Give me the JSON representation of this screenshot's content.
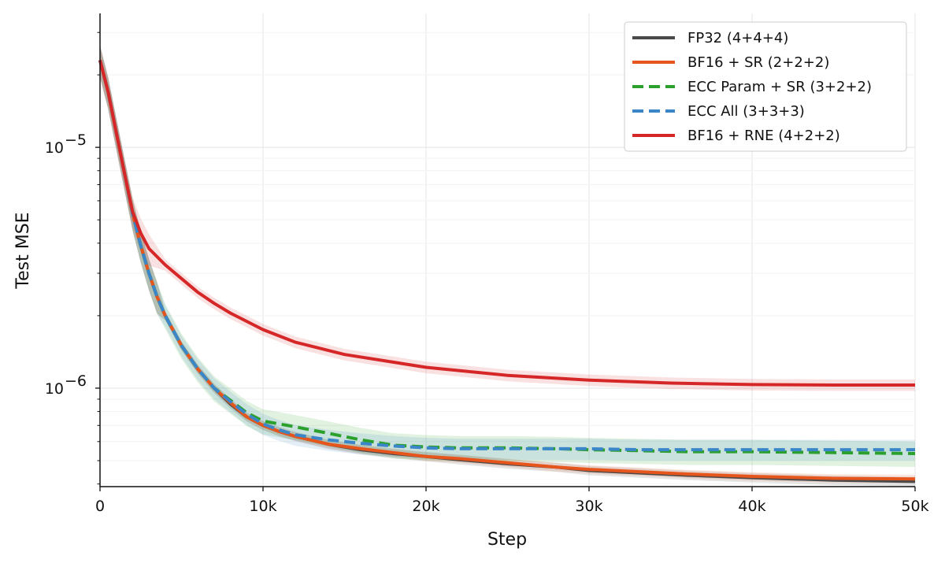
{
  "chart_data": {
    "type": "line",
    "title": "",
    "xlabel": "Step",
    "ylabel": "Test MSE",
    "xlim": [
      0,
      50000
    ],
    "ylim": [
      3.9e-07,
      3.6e-05
    ],
    "yscale": "log",
    "grid": true,
    "legend_position": "top-right",
    "x_ticks": [
      0,
      10000,
      20000,
      30000,
      40000,
      50000
    ],
    "x_tick_labels": [
      "0",
      "10k",
      "20k",
      "30k",
      "40k",
      "50k"
    ],
    "y_major_ticks": [
      1e-06,
      1e-05
    ],
    "y_tick_labels": [
      {
        "base": "10",
        "exp": "−6"
      },
      {
        "base": "10",
        "exp": "−5"
      }
    ],
    "series": [
      {
        "name": "FP32 (4+4+4)",
        "color": "#4a4a4a",
        "dash": "solid",
        "points": [
          [
            0,
            2.3e-05
          ],
          [
            500,
            1.7e-05
          ],
          [
            1000,
            1.15e-05
          ],
          [
            1500,
            7.8e-06
          ],
          [
            2000,
            5.3e-06
          ],
          [
            2500,
            3.9e-06
          ],
          [
            3000,
            3e-06
          ],
          [
            3500,
            2.4e-06
          ],
          [
            4000,
            2e-06
          ],
          [
            5000,
            1.5e-06
          ],
          [
            6000,
            1.2e-06
          ],
          [
            7000,
            1e-06
          ],
          [
            8000,
            8.6e-07
          ],
          [
            9000,
            7.6e-07
          ],
          [
            10000,
            7e-07
          ],
          [
            11000,
            6.6e-07
          ],
          [
            12000,
            6.3e-07
          ],
          [
            14000,
            5.85e-07
          ],
          [
            16000,
            5.55e-07
          ],
          [
            18000,
            5.35e-07
          ],
          [
            20000,
            5.2e-07
          ],
          [
            22000,
            5.05e-07
          ],
          [
            25000,
            4.85e-07
          ],
          [
            28000,
            4.7e-07
          ],
          [
            30000,
            4.55e-07
          ],
          [
            33000,
            4.45e-07
          ],
          [
            36000,
            4.35e-07
          ],
          [
            40000,
            4.25e-07
          ],
          [
            45000,
            4.15e-07
          ],
          [
            50000,
            4.1e-07
          ]
        ]
      },
      {
        "name": "BF16 + SR (2+2+2)",
        "color": "#e6561c",
        "dash": "solid",
        "points": [
          [
            0,
            2.3e-05
          ],
          [
            500,
            1.7e-05
          ],
          [
            1000,
            1.15e-05
          ],
          [
            1500,
            7.8e-06
          ],
          [
            2000,
            5.3e-06
          ],
          [
            2500,
            3.9e-06
          ],
          [
            3000,
            3e-06
          ],
          [
            3500,
            2.4e-06
          ],
          [
            4000,
            2e-06
          ],
          [
            5000,
            1.5e-06
          ],
          [
            6000,
            1.2e-06
          ],
          [
            7000,
            1e-06
          ],
          [
            8000,
            8.7e-07
          ],
          [
            9000,
            7.6e-07
          ],
          [
            10000,
            7e-07
          ],
          [
            11000,
            6.6e-07
          ],
          [
            12000,
            6.3e-07
          ],
          [
            14000,
            5.85e-07
          ],
          [
            16000,
            5.6e-07
          ],
          [
            18000,
            5.4e-07
          ],
          [
            20000,
            5.2e-07
          ],
          [
            22000,
            5.1e-07
          ],
          [
            25000,
            4.9e-07
          ],
          [
            28000,
            4.7e-07
          ],
          [
            30000,
            4.6e-07
          ],
          [
            33000,
            4.5e-07
          ],
          [
            36000,
            4.4e-07
          ],
          [
            40000,
            4.3e-07
          ],
          [
            45000,
            4.22e-07
          ],
          [
            50000,
            4.2e-07
          ]
        ]
      },
      {
        "name": "ECC Param + SR (3+2+2)",
        "color": "#2ca02c",
        "dash": "dashed",
        "points": [
          [
            0,
            2.3e-05
          ],
          [
            500,
            1.7e-05
          ],
          [
            1000,
            1.15e-05
          ],
          [
            1500,
            7.8e-06
          ],
          [
            2000,
            5.3e-06
          ],
          [
            2500,
            3.9e-06
          ],
          [
            3000,
            3e-06
          ],
          [
            3500,
            2.4e-06
          ],
          [
            4000,
            2e-06
          ],
          [
            5000,
            1.5e-06
          ],
          [
            6000,
            1.2e-06
          ],
          [
            7000,
            1e-06
          ],
          [
            8000,
            8.9e-07
          ],
          [
            9000,
            7.9e-07
          ],
          [
            10000,
            7.3e-07
          ],
          [
            11000,
            7.1e-07
          ],
          [
            12000,
            6.9e-07
          ],
          [
            14000,
            6.5e-07
          ],
          [
            16000,
            6.1e-07
          ],
          [
            18000,
            5.8e-07
          ],
          [
            20000,
            5.7e-07
          ],
          [
            22000,
            5.65e-07
          ],
          [
            25000,
            5.65e-07
          ],
          [
            28000,
            5.6e-07
          ],
          [
            30000,
            5.55e-07
          ],
          [
            33000,
            5.5e-07
          ],
          [
            36000,
            5.45e-07
          ],
          [
            40000,
            5.45e-07
          ],
          [
            45000,
            5.4e-07
          ],
          [
            50000,
            5.35e-07
          ]
        ]
      },
      {
        "name": "ECC All (3+3+3)",
        "color": "#3a86c8",
        "dash": "dashed",
        "points": [
          [
            0,
            2.3e-05
          ],
          [
            500,
            1.7e-05
          ],
          [
            1000,
            1.15e-05
          ],
          [
            1500,
            7.8e-06
          ],
          [
            2000,
            5.3e-06
          ],
          [
            2500,
            3.9e-06
          ],
          [
            3000,
            3e-06
          ],
          [
            3500,
            2.4e-06
          ],
          [
            4000,
            2e-06
          ],
          [
            5000,
            1.5e-06
          ],
          [
            6000,
            1.2e-06
          ],
          [
            7000,
            1e-06
          ],
          [
            8000,
            8.8e-07
          ],
          [
            9000,
            7.8e-07
          ],
          [
            10000,
            7.1e-07
          ],
          [
            11000,
            6.7e-07
          ],
          [
            12000,
            6.4e-07
          ],
          [
            14000,
            6.1e-07
          ],
          [
            16000,
            5.9e-07
          ],
          [
            18000,
            5.75e-07
          ],
          [
            20000,
            5.65e-07
          ],
          [
            22000,
            5.6e-07
          ],
          [
            25000,
            5.6e-07
          ],
          [
            28000,
            5.6e-07
          ],
          [
            30000,
            5.6e-07
          ],
          [
            33000,
            5.55e-07
          ],
          [
            36000,
            5.55e-07
          ],
          [
            40000,
            5.55e-07
          ],
          [
            45000,
            5.55e-07
          ],
          [
            50000,
            5.55e-07
          ]
        ]
      },
      {
        "name": "BF16 + RNE (4+2+2)",
        "color": "#d62728",
        "dash": "solid",
        "points": [
          [
            0,
            2.3e-05
          ],
          [
            500,
            1.7e-05
          ],
          [
            1000,
            1.15e-05
          ],
          [
            1500,
            7.8e-06
          ],
          [
            2000,
            5.4e-06
          ],
          [
            2500,
            4.4e-06
          ],
          [
            3000,
            3.8e-06
          ],
          [
            4000,
            3.25e-06
          ],
          [
            5000,
            2.85e-06
          ],
          [
            6000,
            2.5e-06
          ],
          [
            7000,
            2.25e-06
          ],
          [
            8000,
            2.05e-06
          ],
          [
            10000,
            1.75e-06
          ],
          [
            12000,
            1.55e-06
          ],
          [
            15000,
            1.38e-06
          ],
          [
            20000,
            1.22e-06
          ],
          [
            25000,
            1.13e-06
          ],
          [
            30000,
            1.08e-06
          ],
          [
            35000,
            1.05e-06
          ],
          [
            40000,
            1.035e-06
          ],
          [
            45000,
            1.03e-06
          ],
          [
            50000,
            1.03e-06
          ]
        ]
      }
    ]
  }
}
